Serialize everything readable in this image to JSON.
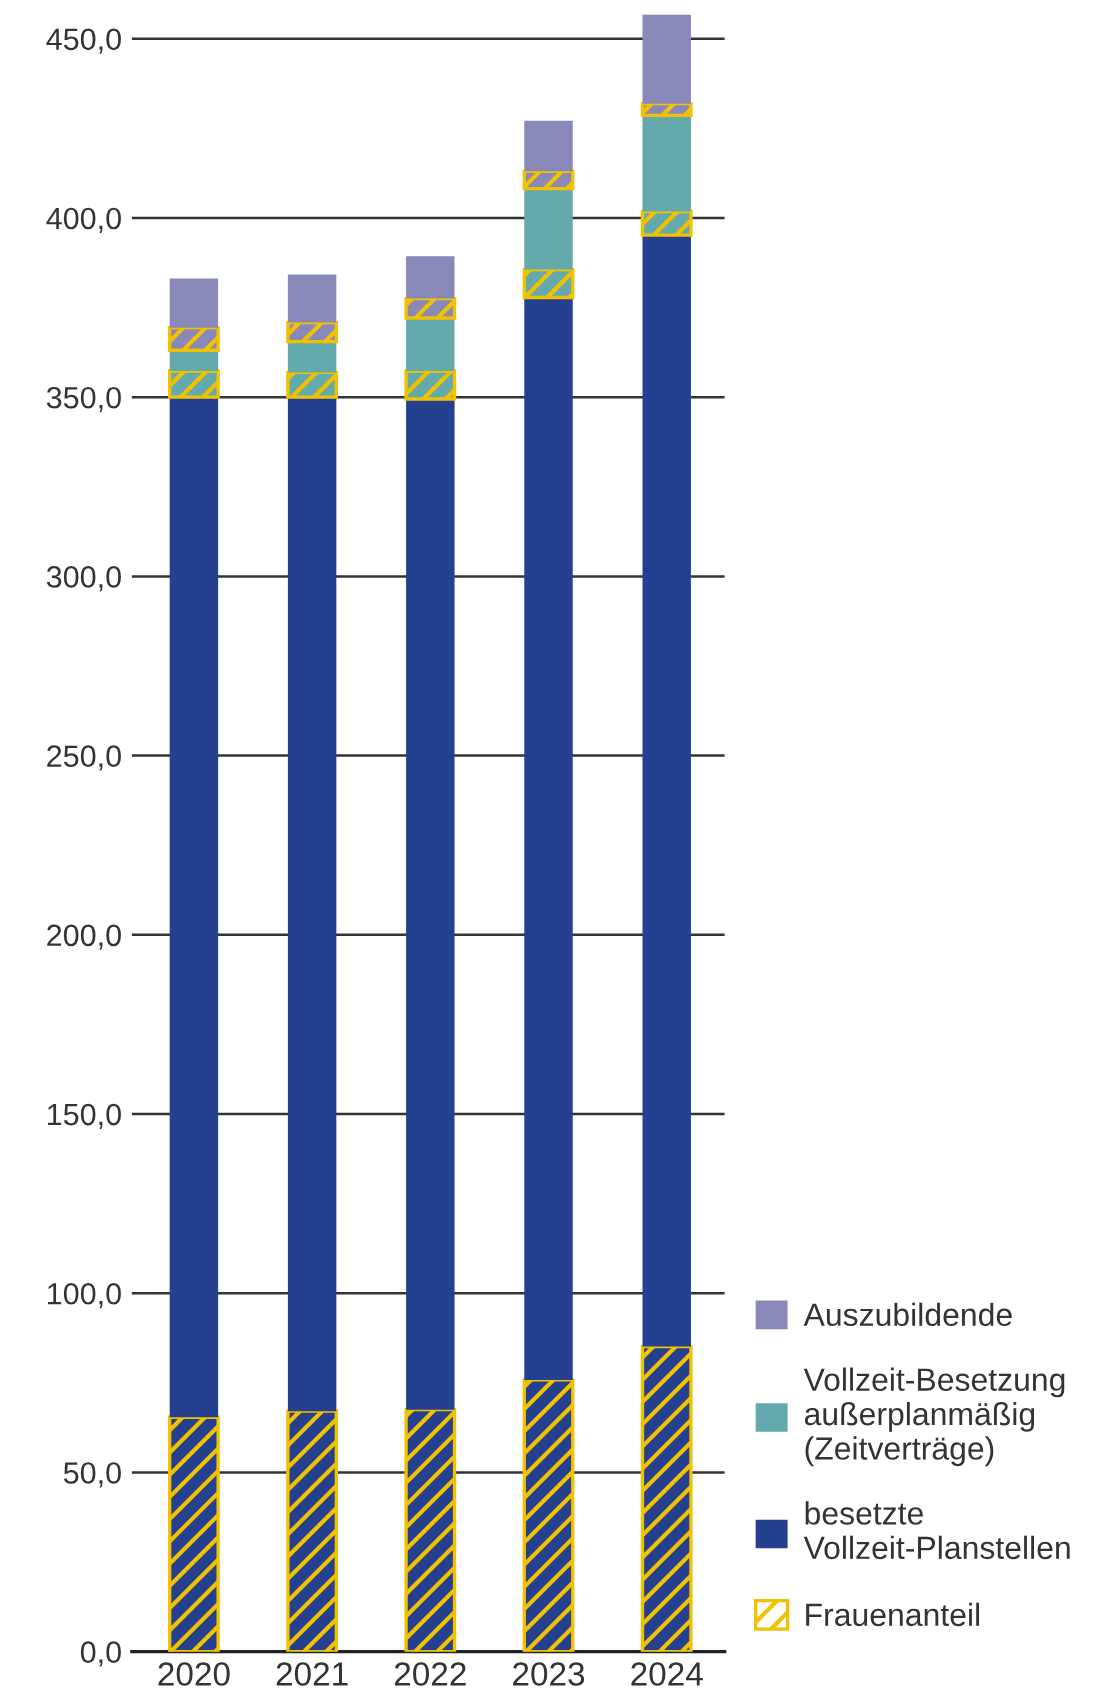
{
  "chart_data": {
    "type": "bar",
    "stacked": true,
    "categories": [
      "2020",
      "2021",
      "2022",
      "2023",
      "2024"
    ],
    "series": [
      {
        "name": "Frauenanteil",
        "color": "#f2c200",
        "values": [
          65.4,
          67.1,
          67.5,
          75.8,
          85.1
        ]
      },
      {
        "name": "besetzte Vollzeit-Planstellen",
        "color": "#25408f",
        "values": [
          284.6,
          282.9,
          282.0,
          302.0,
          310.1
        ]
      },
      {
        "color": "#f2c200",
        "values": [
          7.3,
          6.9,
          7.8,
          7.8,
          6.6
        ]
      },
      {
        "name": "Vollzeit-Besetzung außerplanmäßig (Zeitverträge)",
        "color": "#64aaad",
        "values": [
          5.8,
          8.6,
          14.8,
          22.6,
          26.8
        ]
      },
      {
        "color": "#f2c200",
        "values": [
          6.3,
          5.3,
          5.4,
          4.8,
          3.3
        ]
      },
      {
        "name": "Auszubildende",
        "color": "#8989b9",
        "values": [
          13.7,
          13.4,
          11.8,
          14.1,
          24.8
        ]
      }
    ],
    "ylim": [
      0,
      457
    ],
    "yticks": [
      {
        "value": 0,
        "label": "0,0"
      },
      {
        "value": 50,
        "label": "50,0"
      },
      {
        "value": 100,
        "label": "100,0"
      },
      {
        "value": 150,
        "label": "150,0"
      },
      {
        "value": 200,
        "label": "200,0"
      },
      {
        "value": 250,
        "label": "250,0"
      },
      {
        "value": 300,
        "label": "300,0"
      },
      {
        "value": 350,
        "label": "350,0"
      },
      {
        "value": 400,
        "label": "400,0"
      },
      {
        "value": 450,
        "label": "450,0"
      }
    ],
    "grid": "y",
    "legend": "bottom right"
  }
}
